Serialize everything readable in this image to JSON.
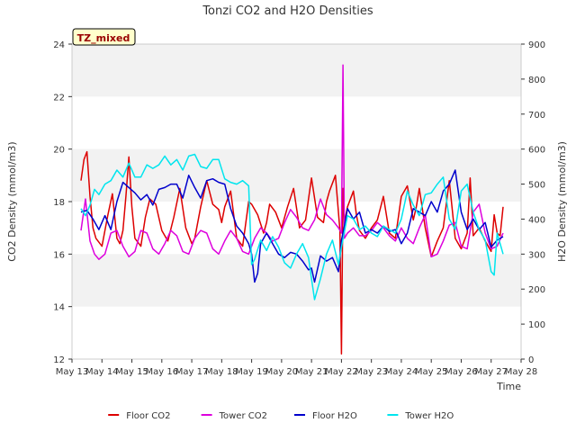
{
  "chart_data": {
    "type": "line",
    "title": "Tonzi CO2 and H2O Densities",
    "badge": "TZ_mixed",
    "xlabel": "Time",
    "ylabel_left": "CO2 Density (mmol/m3)",
    "ylabel_right": "H2O Density (mmol/m3)",
    "xlim": [
      13,
      28
    ],
    "ylim_left": [
      12,
      24
    ],
    "ylim_right": [
      0,
      900
    ],
    "x_ticks": [
      {
        "v": 13,
        "label": "May 13"
      },
      {
        "v": 14,
        "label": "May 14"
      },
      {
        "v": 15,
        "label": "May 15"
      },
      {
        "v": 16,
        "label": "May 16"
      },
      {
        "v": 17,
        "label": "May 17"
      },
      {
        "v": 18,
        "label": "May 18"
      },
      {
        "v": 19,
        "label": "May 19"
      },
      {
        "v": 20,
        "label": "May 20"
      },
      {
        "v": 21,
        "label": "May 21"
      },
      {
        "v": 22,
        "label": "May 22"
      },
      {
        "v": 23,
        "label": "May 23"
      },
      {
        "v": 24,
        "label": "May 24"
      },
      {
        "v": 25,
        "label": "May 25"
      },
      {
        "v": 26,
        "label": "May 26"
      },
      {
        "v": 27,
        "label": "May 27"
      },
      {
        "v": 28,
        "label": "May 28"
      }
    ],
    "y_ticks_left": [
      12,
      14,
      16,
      18,
      20,
      22,
      24
    ],
    "y_ticks_right": [
      0,
      100,
      200,
      300,
      400,
      500,
      600,
      700,
      800,
      900
    ],
    "shaded_bands_left": [
      [
        14,
        16
      ],
      [
        18,
        20
      ],
      [
        22,
        24
      ]
    ],
    "legend_position": "bottom-center",
    "series": [
      {
        "name": "Floor CO2",
        "color": "#dd0000",
        "axis": "left",
        "x": [
          13.3,
          13.4,
          13.5,
          13.6,
          13.7,
          13.8,
          14.0,
          14.2,
          14.35,
          14.5,
          14.6,
          14.7,
          14.8,
          14.9,
          15.0,
          15.1,
          15.3,
          15.45,
          15.6,
          15.8,
          16.0,
          16.2,
          16.4,
          16.6,
          16.8,
          17.0,
          17.1,
          17.3,
          17.5,
          17.7,
          17.9,
          18.0,
          18.1,
          18.3,
          18.5,
          18.7,
          18.9,
          19.0,
          19.2,
          19.4,
          19.5,
          19.6,
          19.8,
          20.0,
          20.2,
          20.4,
          20.6,
          20.8,
          21.0,
          21.2,
          21.4,
          21.5,
          21.6,
          21.8,
          21.95,
          22.0,
          22.05,
          22.1,
          22.2,
          22.4,
          22.5,
          22.6,
          22.8,
          23.0,
          23.2,
          23.4,
          23.6,
          23.8,
          24.0,
          24.2,
          24.4,
          24.5,
          24.6,
          24.8,
          25.0,
          25.2,
          25.4,
          25.6,
          25.8,
          26.0,
          26.2,
          26.3,
          26.4,
          26.6,
          26.8,
          27.0,
          27.1,
          27.2,
          27.3,
          27.4
        ],
        "y": [
          18.8,
          19.6,
          19.9,
          18.2,
          17.0,
          16.6,
          16.3,
          17.5,
          18.3,
          16.6,
          16.4,
          16.9,
          18.2,
          19.7,
          17.8,
          16.6,
          16.3,
          17.4,
          18.1,
          17.9,
          16.9,
          16.5,
          17.4,
          18.5,
          17.0,
          16.4,
          16.6,
          17.8,
          18.8,
          17.9,
          17.7,
          17.2,
          17.8,
          18.4,
          16.6,
          16.3,
          18.0,
          17.9,
          17.5,
          16.8,
          17.2,
          17.9,
          17.6,
          17.0,
          17.8,
          18.5,
          17.0,
          17.3,
          18.9,
          17.4,
          17.2,
          18.0,
          18.4,
          19.0,
          16.9,
          12.2,
          18.5,
          17.2,
          17.8,
          18.4,
          17.5,
          16.9,
          16.6,
          17.0,
          17.3,
          18.2,
          16.8,
          16.6,
          18.2,
          18.6,
          17.3,
          17.8,
          18.5,
          17.0,
          15.9,
          16.5,
          17.0,
          18.8,
          16.6,
          16.2,
          16.8,
          18.9,
          16.7,
          17.0,
          16.5,
          16.1,
          17.5,
          16.8,
          16.7,
          17.8
        ]
      },
      {
        "name": "Tower CO2",
        "color": "#dd00dd",
        "axis": "left",
        "x": [
          13.3,
          13.45,
          13.6,
          13.75,
          13.9,
          14.1,
          14.3,
          14.5,
          14.7,
          14.9,
          15.1,
          15.3,
          15.5,
          15.7,
          15.9,
          16.1,
          16.3,
          16.5,
          16.7,
          16.9,
          17.1,
          17.3,
          17.5,
          17.7,
          17.9,
          18.1,
          18.3,
          18.5,
          18.7,
          18.9,
          19.1,
          19.3,
          19.5,
          19.7,
          19.9,
          20.1,
          20.3,
          20.5,
          20.7,
          20.9,
          21.1,
          21.3,
          21.5,
          21.7,
          21.9,
          22.0,
          22.05,
          22.1,
          22.2,
          22.4,
          22.6,
          22.8,
          23.0,
          23.2,
          23.4,
          23.6,
          23.8,
          24.0,
          24.2,
          24.4,
          24.6,
          24.8,
          25.0,
          25.2,
          25.4,
          25.6,
          25.8,
          26.0,
          26.2,
          26.4,
          26.6,
          26.8,
          27.0,
          27.2,
          27.4
        ],
        "y": [
          16.9,
          18.1,
          16.5,
          16.0,
          15.8,
          16.0,
          16.8,
          16.9,
          16.3,
          15.9,
          16.1,
          16.9,
          16.8,
          16.2,
          16.0,
          16.4,
          16.9,
          16.7,
          16.1,
          16.0,
          16.6,
          16.9,
          16.8,
          16.2,
          16.0,
          16.5,
          16.9,
          16.6,
          16.1,
          16.0,
          16.6,
          17.0,
          16.8,
          16.5,
          16.6,
          17.2,
          17.7,
          17.4,
          17.0,
          16.9,
          17.3,
          18.1,
          17.5,
          17.3,
          17.0,
          16.8,
          23.2,
          16.6,
          16.8,
          17.0,
          16.7,
          16.7,
          16.9,
          17.2,
          17.0,
          16.7,
          16.5,
          17.0,
          16.6,
          16.4,
          17.0,
          17.5,
          15.9,
          16.0,
          16.5,
          17.1,
          17.2,
          16.3,
          16.2,
          17.6,
          17.9,
          16.8,
          16.2,
          16.3,
          16.8
        ]
      },
      {
        "name": "Floor H2O",
        "color": "#0000cc",
        "axis": "right",
        "x": [
          13.3,
          13.5,
          13.7,
          13.9,
          14.1,
          14.3,
          14.5,
          14.7,
          14.9,
          15.1,
          15.3,
          15.5,
          15.7,
          15.9,
          16.1,
          16.3,
          16.5,
          16.7,
          16.9,
          17.1,
          17.3,
          17.5,
          17.7,
          17.9,
          18.1,
          18.3,
          18.5,
          18.7,
          18.9,
          19.0,
          19.1,
          19.2,
          19.3,
          19.5,
          19.7,
          19.9,
          20.1,
          20.3,
          20.5,
          20.7,
          20.9,
          21.0,
          21.1,
          21.3,
          21.5,
          21.7,
          21.9,
          22.0,
          22.1,
          22.2,
          22.4,
          22.6,
          22.8,
          23.0,
          23.2,
          23.4,
          23.6,
          23.8,
          24.0,
          24.2,
          24.4,
          24.6,
          24.8,
          25.0,
          25.2,
          25.4,
          25.6,
          25.8,
          26.0,
          26.2,
          26.4,
          26.6,
          26.8,
          27.0,
          27.2,
          27.4
        ],
        "y": [
          420,
          425,
          400,
          370,
          410,
          370,
          450,
          505,
          490,
          475,
          455,
          470,
          440,
          485,
          490,
          500,
          500,
          460,
          525,
          490,
          460,
          510,
          515,
          505,
          500,
          430,
          380,
          360,
          330,
          300,
          220,
          245,
          330,
          360,
          330,
          300,
          290,
          305,
          300,
          280,
          255,
          260,
          220,
          295,
          280,
          290,
          250,
          340,
          380,
          430,
          400,
          420,
          360,
          370,
          360,
          380,
          365,
          370,
          330,
          360,
          430,
          420,
          410,
          450,
          420,
          480,
          500,
          540,
          420,
          370,
          400,
          370,
          390,
          320,
          340,
          350
        ]
      },
      {
        "name": "Tower H2O",
        "color": "#00e5ee",
        "axis": "right",
        "x": [
          13.3,
          13.45,
          13.6,
          13.75,
          13.9,
          14.1,
          14.3,
          14.5,
          14.7,
          14.9,
          15.1,
          15.3,
          15.5,
          15.7,
          15.9,
          16.1,
          16.3,
          16.5,
          16.7,
          16.9,
          17.1,
          17.3,
          17.5,
          17.7,
          17.9,
          18.1,
          18.3,
          18.5,
          18.7,
          18.9,
          19.0,
          19.1,
          19.3,
          19.5,
          19.7,
          19.9,
          20.1,
          20.3,
          20.5,
          20.7,
          20.9,
          21.0,
          21.05,
          21.1,
          21.3,
          21.5,
          21.7,
          21.9,
          22.0,
          22.2,
          22.4,
          22.6,
          22.8,
          23.0,
          23.2,
          23.4,
          23.6,
          23.8,
          24.0,
          24.2,
          24.4,
          24.6,
          24.8,
          25.0,
          25.2,
          25.4,
          25.6,
          25.8,
          26.0,
          26.2,
          26.4,
          26.6,
          26.8,
          27.0,
          27.1,
          27.2,
          27.4
        ],
        "y": [
          430,
          410,
          440,
          485,
          470,
          500,
          510,
          540,
          520,
          560,
          520,
          520,
          555,
          545,
          555,
          580,
          555,
          570,
          540,
          580,
          585,
          550,
          545,
          570,
          570,
          515,
          505,
          500,
          510,
          495,
          270,
          285,
          340,
          310,
          350,
          320,
          275,
          260,
          300,
          330,
          290,
          230,
          200,
          170,
          230,
          300,
          340,
          270,
          320,
          410,
          400,
          370,
          380,
          360,
          350,
          380,
          370,
          360,
          400,
          480,
          440,
          410,
          470,
          475,
          500,
          520,
          400,
          370,
          480,
          500,
          420,
          370,
          340,
          250,
          240,
          360,
          300
        ]
      }
    ]
  }
}
